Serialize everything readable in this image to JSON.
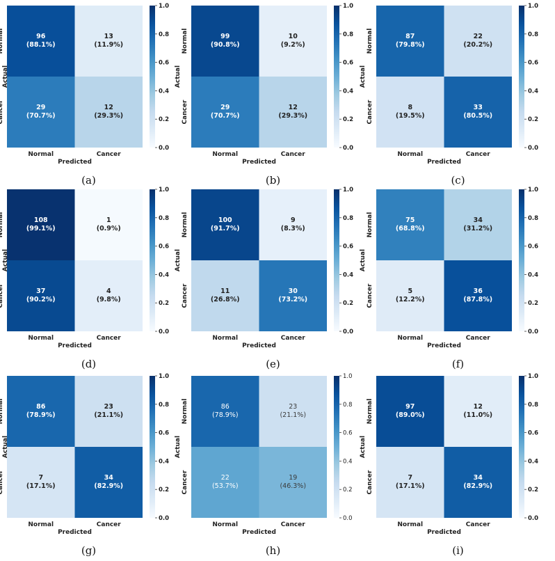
{
  "figure": {
    "tick_values": [
      "0.0",
      "0.2",
      "0.4",
      "0.6",
      "0.8",
      "1.0"
    ],
    "colormap": [
      "#f7fbff",
      "#deebf7",
      "#c6dbef",
      "#9ecae1",
      "#6baed6",
      "#4292c6",
      "#2171b5",
      "#08519c",
      "#08306b"
    ]
  },
  "chart_data": [
    {
      "type": "heatmap",
      "caption": "(a)",
      "xlabel": "Predicted",
      "ylabel": "Actual",
      "x_categories": [
        "Normal",
        "Cancer"
      ],
      "y_categories": [
        "Normal",
        "Cancer"
      ],
      "counts": [
        [
          96,
          13
        ],
        [
          29,
          12
        ]
      ],
      "percents": [
        "88.1%",
        "11.9%",
        "70.7%",
        "29.3%"
      ],
      "ratios": [
        [
          0.881,
          0.119
        ],
        [
          0.707,
          0.293
        ]
      ],
      "vmin": 0.0,
      "vmax": 1.0
    },
    {
      "type": "heatmap",
      "caption": "(b)",
      "xlabel": "Predicted",
      "ylabel": "Actual",
      "x_categories": [
        "Normal",
        "Cancer"
      ],
      "y_categories": [
        "Normal",
        "Cancer"
      ],
      "counts": [
        [
          99,
          10
        ],
        [
          29,
          12
        ]
      ],
      "percents": [
        "90.8%",
        "9.2%",
        "70.7%",
        "29.3%"
      ],
      "ratios": [
        [
          0.908,
          0.092
        ],
        [
          0.707,
          0.293
        ]
      ],
      "vmin": 0.0,
      "vmax": 1.0
    },
    {
      "type": "heatmap",
      "caption": "(c)",
      "xlabel": "Predicted",
      "ylabel": "Actual",
      "x_categories": [
        "Normal",
        "Cancer"
      ],
      "y_categories": [
        "Normal",
        "Cancer"
      ],
      "counts": [
        [
          87,
          22
        ],
        [
          8,
          33
        ]
      ],
      "percents": [
        "79.8%",
        "20.2%",
        "19.5%",
        "80.5%"
      ],
      "ratios": [
        [
          0.798,
          0.202
        ],
        [
          0.195,
          0.805
        ]
      ],
      "vmin": 0.0,
      "vmax": 1.0
    },
    {
      "type": "heatmap",
      "caption": "(d)",
      "xlabel": "Predicted",
      "ylabel": "Actual",
      "x_categories": [
        "Normal",
        "Cancer"
      ],
      "y_categories": [
        "Normal",
        "Cancer"
      ],
      "counts": [
        [
          108,
          1
        ],
        [
          37,
          4
        ]
      ],
      "percents": [
        "99.1%",
        "0.9%",
        "90.2%",
        "9.8%"
      ],
      "ratios": [
        [
          0.991,
          0.009
        ],
        [
          0.902,
          0.098
        ]
      ],
      "vmin": 0.0,
      "vmax": 1.0
    },
    {
      "type": "heatmap",
      "caption": "(e)",
      "xlabel": "Predicted",
      "ylabel": "Actual",
      "x_categories": [
        "Normal",
        "Cancer"
      ],
      "y_categories": [
        "Normal",
        "Cancer"
      ],
      "counts": [
        [
          100,
          9
        ],
        [
          11,
          30
        ]
      ],
      "percents": [
        "91.7%",
        "8.3%",
        "26.8%",
        "73.2%"
      ],
      "ratios": [
        [
          0.917,
          0.083
        ],
        [
          0.268,
          0.732
        ]
      ],
      "vmin": 0.0,
      "vmax": 1.0
    },
    {
      "type": "heatmap",
      "caption": "(f)",
      "xlabel": "Predicted",
      "ylabel": "Actual",
      "x_categories": [
        "Normal",
        "Cancer"
      ],
      "y_categories": [
        "Normal",
        "Cancer"
      ],
      "counts": [
        [
          75,
          34
        ],
        [
          5,
          36
        ]
      ],
      "percents": [
        "68.8%",
        "31.2%",
        "12.2%",
        "87.8%"
      ],
      "ratios": [
        [
          0.688,
          0.312
        ],
        [
          0.122,
          0.878
        ]
      ],
      "vmin": 0.0,
      "vmax": 1.0
    },
    {
      "type": "heatmap",
      "caption": "(g)",
      "xlabel": "Predicted",
      "ylabel": "Actual",
      "x_categories": [
        "Normal",
        "Cancer"
      ],
      "y_categories": [
        "Normal",
        "Cancer"
      ],
      "counts": [
        [
          86,
          23
        ],
        [
          7,
          34
        ]
      ],
      "percents": [
        "78.9%",
        "21.1%",
        "17.1%",
        "82.9%"
      ],
      "ratios": [
        [
          0.789,
          0.211
        ],
        [
          0.171,
          0.829
        ]
      ],
      "vmin": 0.0,
      "vmax": 1.0
    },
    {
      "type": "heatmap",
      "caption": "(h)",
      "xlabel": "Predicted",
      "ylabel": "Actual",
      "x_categories": [
        "Normal",
        "Cancer"
      ],
      "y_categories": [
        "Normal",
        "Cancer"
      ],
      "counts": [
        [
          86,
          23
        ],
        [
          22,
          19
        ]
      ],
      "percents": [
        "78.9%",
        "21.1%",
        "53.7%",
        "46.3%"
      ],
      "ratios": [
        [
          0.789,
          0.211
        ],
        [
          0.537,
          0.463
        ]
      ],
      "vmin": 0.0,
      "vmax": 1.0
    },
    {
      "type": "heatmap",
      "caption": "(i)",
      "xlabel": "Predicted",
      "ylabel": "Actual",
      "x_categories": [
        "Normal",
        "Cancer"
      ],
      "y_categories": [
        "Normal",
        "Cancer"
      ],
      "counts": [
        [
          97,
          12
        ],
        [
          7,
          34
        ]
      ],
      "percents": [
        "89.0%",
        "11.0%",
        "17.1%",
        "82.9%"
      ],
      "ratios": [
        [
          0.89,
          0.11
        ],
        [
          0.171,
          0.829
        ]
      ],
      "vmin": 0.0,
      "vmax": 1.0
    }
  ]
}
